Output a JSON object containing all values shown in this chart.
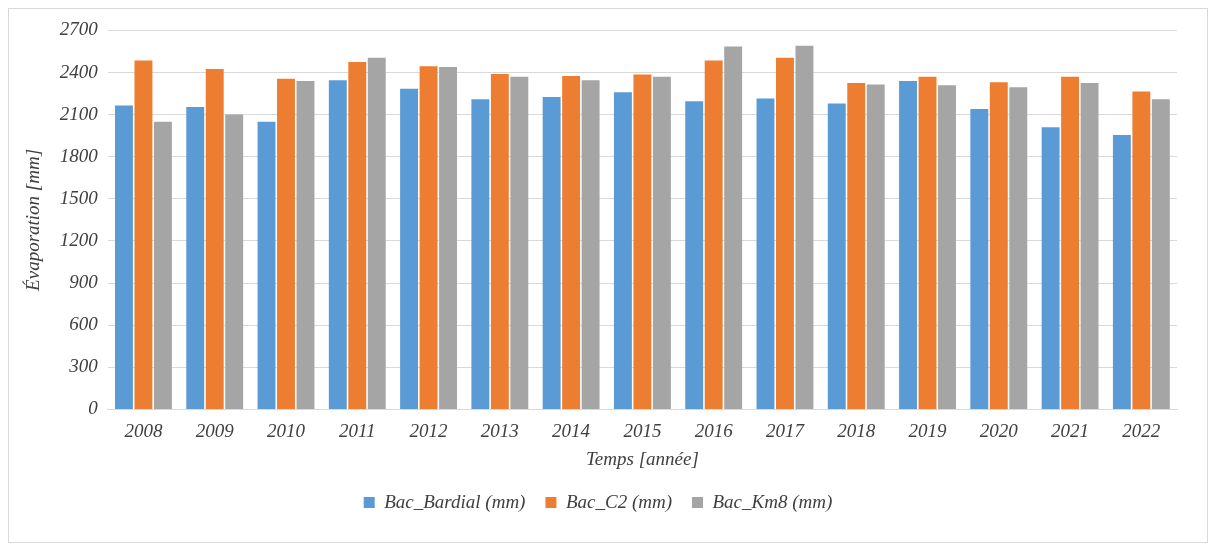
{
  "chart_data": {
    "type": "bar",
    "xlabel": "Temps [année]",
    "ylabel": "Évaporation [mm]",
    "categories": [
      "2008",
      "2009",
      "2010",
      "2011",
      "2012",
      "2013",
      "2014",
      "2015",
      "2016",
      "2017",
      "2018",
      "2019",
      "2020",
      "2021",
      "2022"
    ],
    "series": [
      {
        "name": "Bac_Bardial (mm)",
        "color": "#5b9bd5",
        "values": [
          2165,
          2155,
          2050,
          2345,
          2285,
          2210,
          2225,
          2260,
          2195,
          2215,
          2180,
          2340,
          2140,
          2010,
          1955
        ]
      },
      {
        "name": "Bac_C2 (mm)",
        "color": "#ed7d31",
        "values": [
          2485,
          2425,
          2355,
          2475,
          2445,
          2390,
          2375,
          2385,
          2485,
          2505,
          2325,
          2370,
          2330,
          2370,
          2265
        ]
      },
      {
        "name": "Bac_Km8 (mm)",
        "color": "#a5a5a5",
        "values": [
          2050,
          2100,
          2340,
          2505,
          2440,
          2370,
          2345,
          2370,
          2585,
          2590,
          2315,
          2310,
          2295,
          2325,
          2210
        ]
      }
    ],
    "ylim": [
      0,
      2700
    ],
    "yticks": [
      0,
      300,
      600,
      900,
      1200,
      1500,
      1800,
      2100,
      2400,
      2700
    ],
    "grid": "y",
    "legend": "bottom"
  }
}
